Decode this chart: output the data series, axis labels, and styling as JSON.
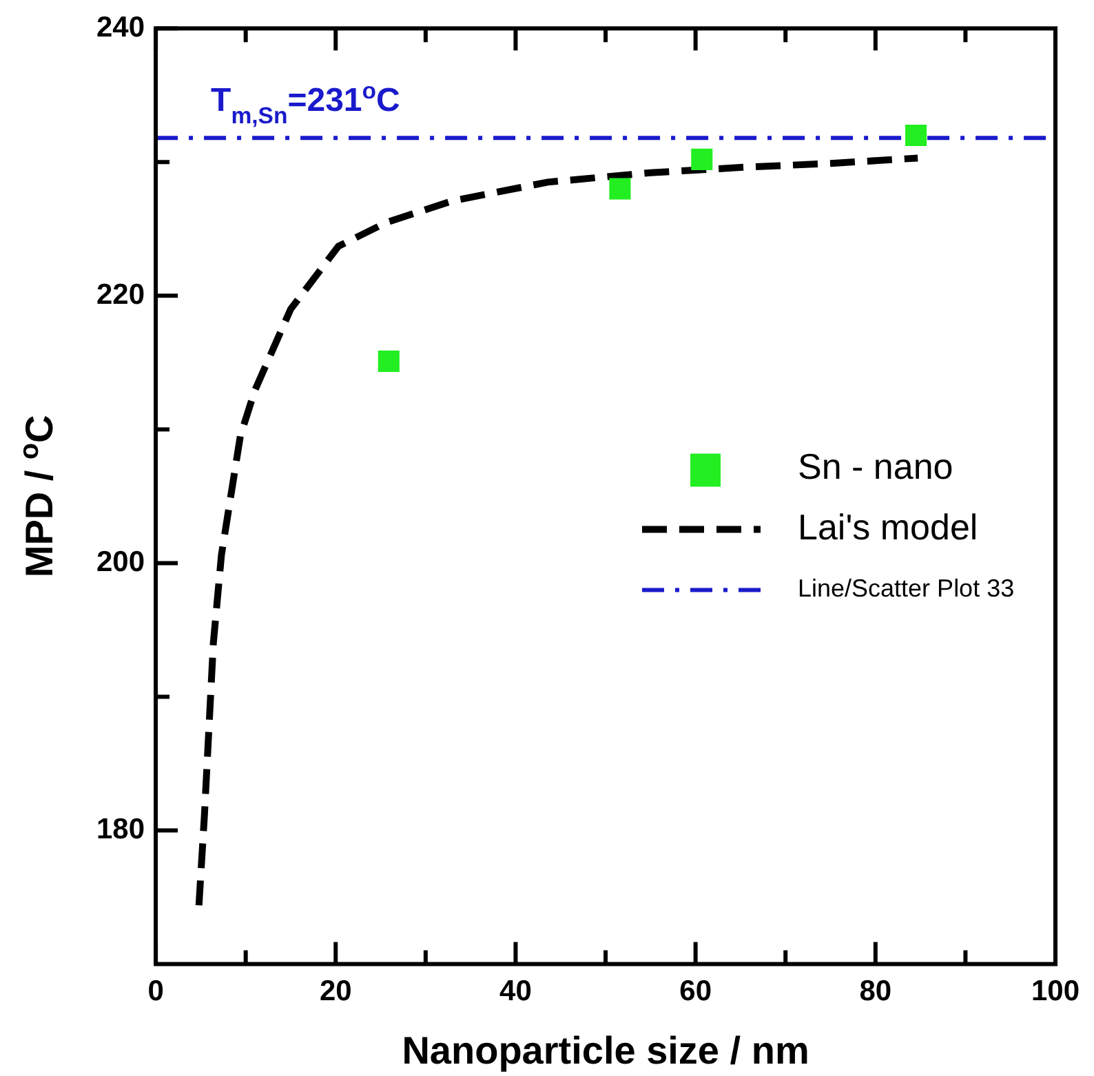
{
  "chart_data": {
    "type": "scatter",
    "xlabel": "Nanoparticle size / nm",
    "ylabel": "MPD / $^{o}$C",
    "xlim": [
      0,
      100
    ],
    "ylim": [
      170,
      240
    ],
    "xticks": [
      0,
      {
        "value": 10,
        "label": null
      },
      20,
      {
        "value": 30,
        "label": null
      },
      40,
      {
        "value": 50,
        "label": null
      },
      60,
      {
        "value": 70,
        "label": null
      },
      80,
      {
        "value": 90,
        "label": null
      },
      100
    ],
    "yticks": [
      180,
      {
        "value": 190,
        "label": null
      },
      200,
      {
        "value": 210,
        "label": null
      },
      220,
      {
        "value": 230,
        "label": null
      },
      240
    ],
    "legend": "right",
    "grid": false,
    "annotations": [
      "T$_{m,Sn}$=231$^{o}$C"
    ],
    "series": [
      {
        "name": "Sn - nano",
        "marker": "square",
        "color": "#22ee22",
        "x": [
          25.9,
          51.6,
          60.7,
          84.5
        ],
        "values": [
          215.1,
          228.0,
          230.2,
          232.0
        ]
      },
      {
        "name": "Lai's model",
        "type": "line",
        "marker": "none",
        "line_style": "dashed",
        "color": "#000000",
        "x": [
          4.8,
          5.4,
          6.4,
          7.3,
          9.4,
          11,
          15,
          20.3,
          25.7,
          33,
          43.6,
          55,
          65,
          75,
          84.7
        ],
        "values": [
          174.4,
          181,
          194,
          200.6,
          209.5,
          212.9,
          219,
          223.7,
          225.5,
          227.1,
          228.5,
          229.2,
          229.6,
          229.9,
          230.3
        ]
      },
      {
        "name": "Line/Scatter Plot 33",
        "type": "line",
        "marker": "none",
        "line_style": "dashdot",
        "color": "#1a1acc",
        "x": [
          0,
          100
        ],
        "values": [
          231.8,
          231.8
        ]
      }
    ]
  }
}
